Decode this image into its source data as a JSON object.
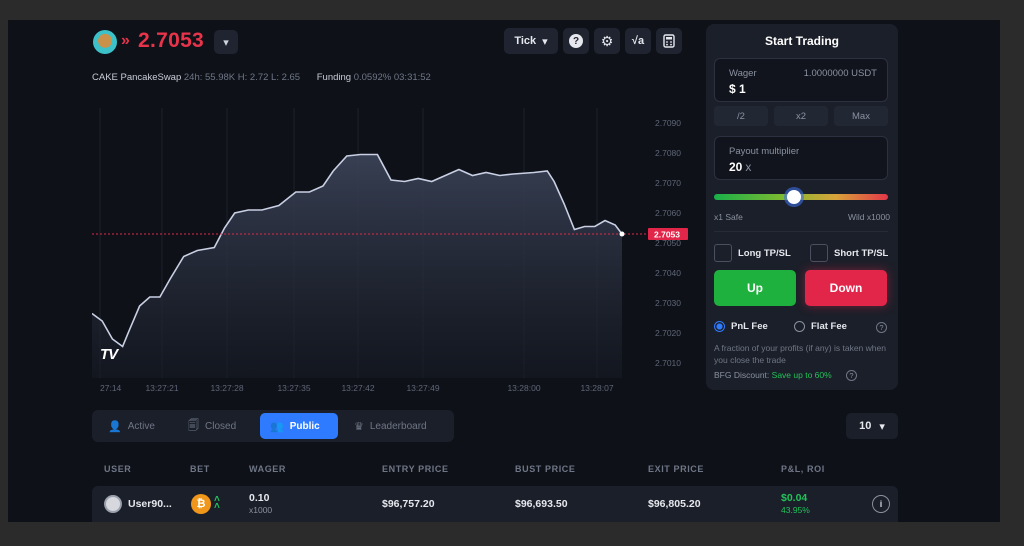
{
  "header": {
    "price": "2.7053",
    "ticker": "CAKE PancakeSwap",
    "stats": "24h: 55.98K H: 2.72 L: 2.65",
    "funding_label": "Funding",
    "funding_value": "0.0592% 03:31:52"
  },
  "toolbar": {
    "tick_label": "Tick",
    "help_icon": "?",
    "sqrt_label": "√a"
  },
  "chart_data": {
    "type": "area",
    "title": "",
    "current_price": "2.7053",
    "x_ticks": [
      "27:14",
      "13:27:21",
      "13:27:28",
      "13:27:35",
      "13:27:42",
      "13:27:49",
      "13:28:00",
      "13:28:07"
    ],
    "y_ticks": [
      "2.7090",
      "2.7080",
      "2.7070",
      "2.7060",
      "2.7050",
      "2.7040",
      "2.7030",
      "2.7020",
      "2.7010"
    ],
    "ylim": [
      2.7005,
      2.7095
    ],
    "series": [
      {
        "points": [
          [
            0,
            2.70265
          ],
          [
            1.5,
            2.7024
          ],
          [
            3,
            2.7018
          ],
          [
            4.5,
            2.70155
          ],
          [
            5.5,
            2.7021
          ],
          [
            7,
            2.7029
          ],
          [
            8.5,
            2.7032
          ],
          [
            10,
            2.7032
          ],
          [
            11.5,
            2.7038
          ],
          [
            13.5,
            2.70455
          ],
          [
            15.5,
            2.70475
          ],
          [
            18,
            2.70485
          ],
          [
            19.5,
            2.7055
          ],
          [
            21,
            2.706
          ],
          [
            23,
            2.7061
          ],
          [
            25,
            2.7061
          ],
          [
            27.5,
            2.70625
          ],
          [
            30,
            2.7067
          ],
          [
            32,
            2.7067
          ],
          [
            34,
            2.7069
          ],
          [
            35.5,
            2.7074
          ],
          [
            37.5,
            2.7079
          ],
          [
            39.5,
            2.70795
          ],
          [
            42,
            2.70795
          ],
          [
            44,
            2.7071
          ],
          [
            46,
            2.70705
          ],
          [
            48,
            2.70715
          ],
          [
            50,
            2.70705
          ],
          [
            52.5,
            2.7073
          ],
          [
            54,
            2.70745
          ],
          [
            56,
            2.70725
          ],
          [
            58,
            2.70735
          ],
          [
            60,
            2.70725
          ],
          [
            62,
            2.7073
          ],
          [
            65,
            2.70735
          ],
          [
            67,
            2.7074
          ],
          [
            68,
            2.70705
          ],
          [
            69.5,
            2.7063
          ],
          [
            71,
            2.70545
          ],
          [
            72.5,
            2.70555
          ],
          [
            74,
            2.70555
          ],
          [
            75.5,
            2.70575
          ],
          [
            77,
            2.7056
          ],
          [
            78,
            2.7053
          ]
        ]
      }
    ]
  },
  "panel": {
    "title": "Start Trading",
    "wager_label": "Wager",
    "wager_balance": "1.0000000 USDT",
    "wager_value": "$ 1",
    "chips": [
      "/2",
      "x2",
      "Max"
    ],
    "payout_label": "Payout multiplier",
    "payout_value": "20",
    "payout_unit": "x",
    "slider_value_percent": 46,
    "slider_min": "x1 Safe",
    "slider_max": "Wild x1000",
    "long_tpsl": "Long TP/SL",
    "short_tpsl": "Short TP/SL",
    "up_label": "Up",
    "down_label": "Down",
    "pnl_fee": "PnL Fee",
    "flat_fee": "Flat Fee",
    "fee_desc": "A fraction of your profits (if any) is taken when you close the trade",
    "bfg_label": "BFG Discount:",
    "bfg_value": "Save up to 60%"
  },
  "tabs": [
    {
      "label": "Active"
    },
    {
      "label": "Closed"
    },
    {
      "label": "Public"
    },
    {
      "label": "Leaderboard"
    }
  ],
  "count_select": "10",
  "table": {
    "headers": [
      "USER",
      "BET",
      "WAGER",
      "ENTRY PRICE",
      "BUST PRICE",
      "EXIT PRICE",
      "P&L, ROI"
    ],
    "rows": [
      {
        "user": "User90...",
        "bet_symbol": "₿",
        "wager": "0.10",
        "multiplier": "x1000",
        "entry": "$96,757.20",
        "bust": "$96,693.50",
        "exit": "$96,805.20",
        "pnl": "$0.04",
        "roi": "43.95%"
      }
    ]
  },
  "colors": {
    "accent": "#2f7bff",
    "up": "#1eb13d",
    "down": "#e2264a",
    "price_red": "#e8334a"
  }
}
